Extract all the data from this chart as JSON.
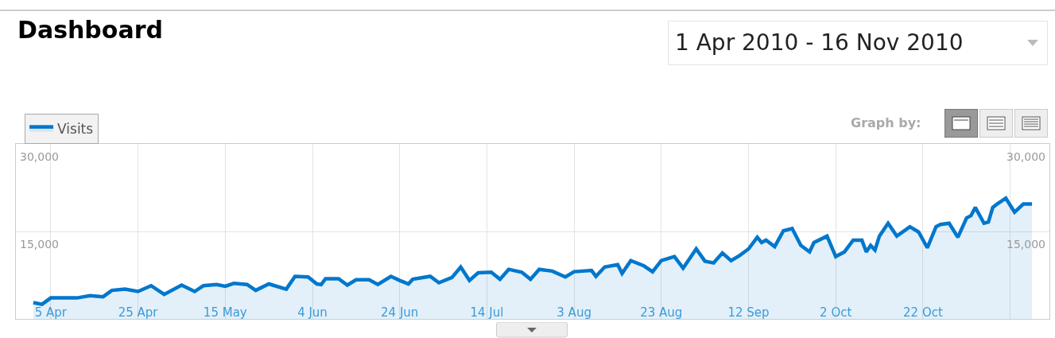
{
  "chart_data": {
    "type": "area",
    "title": "Dashboard",
    "subtitle": "1 Apr 2010 - 16 Nov 2010",
    "annotations": [
      "Graph by:"
    ],
    "x": [
      "2010-04-01",
      "2010-04-03",
      "2010-04-05",
      "2010-04-11",
      "2010-04-14",
      "2010-04-17",
      "2010-04-19",
      "2010-04-22",
      "2010-04-25",
      "2010-04-28",
      "2010-05-01",
      "2010-05-05",
      "2010-05-08",
      "2010-05-10",
      "2010-05-13",
      "2010-05-15",
      "2010-05-17",
      "2010-05-20",
      "2010-05-22",
      "2010-05-25",
      "2010-05-29",
      "2010-05-31",
      "2010-06-03",
      "2010-06-05",
      "2010-06-06",
      "2010-06-07",
      "2010-06-10",
      "2010-06-12",
      "2010-06-14",
      "2010-06-17",
      "2010-06-19",
      "2010-06-22",
      "2010-06-24",
      "2010-06-26",
      "2010-06-27",
      "2010-07-01",
      "2010-07-03",
      "2010-07-06",
      "2010-07-08",
      "2010-07-10",
      "2010-07-12",
      "2010-07-15",
      "2010-07-17",
      "2010-07-19",
      "2010-07-22",
      "2010-07-24",
      "2010-07-26",
      "2010-07-29",
      "2010-08-01",
      "2010-08-03",
      "2010-08-07",
      "2010-08-08",
      "2010-08-10",
      "2010-08-13",
      "2010-08-14",
      "2010-08-16",
      "2010-08-19",
      "2010-08-21",
      "2010-08-23",
      "2010-08-26",
      "2010-08-28",
      "2010-08-31",
      "2010-09-02",
      "2010-09-04",
      "2010-09-06",
      "2010-09-08",
      "2010-09-10",
      "2010-09-12",
      "2010-09-14",
      "2010-09-15",
      "2010-09-16",
      "2010-09-18",
      "2010-09-20",
      "2010-09-22",
      "2010-09-24",
      "2010-09-26",
      "2010-09-27",
      "2010-09-30",
      "2010-10-02",
      "2010-10-04",
      "2010-10-06",
      "2010-10-08",
      "2010-10-09",
      "2010-10-10",
      "2010-10-11",
      "2010-10-12",
      "2010-10-14",
      "2010-10-16",
      "2010-10-19",
      "2010-10-21",
      "2010-10-23",
      "2010-10-25",
      "2010-10-26",
      "2010-10-28",
      "2010-10-30",
      "2010-11-01",
      "2010-11-02",
      "2010-11-03",
      "2010-11-05",
      "2010-11-06",
      "2010-11-07",
      "2010-11-08",
      "2010-11-10",
      "2010-11-12",
      "2010-11-14",
      "2010-11-16"
    ],
    "series": [
      {
        "name": "Visits",
        "color": "#0077cc",
        "values": [
          2800,
          2500,
          3600,
          3600,
          4000,
          3800,
          4900,
          5100,
          4700,
          5700,
          4200,
          5800,
          4700,
          5700,
          5900,
          5600,
          6100,
          5900,
          4900,
          6000,
          5100,
          7300,
          7200,
          6000,
          5900,
          6900,
          6900,
          5800,
          6700,
          6700,
          5900,
          7300,
          6600,
          6000,
          6800,
          7300,
          6200,
          7100,
          8900,
          6600,
          7900,
          8000,
          6800,
          8500,
          8000,
          6800,
          8500,
          8200,
          7200,
          8100,
          8300,
          7300,
          8900,
          9300,
          7800,
          10000,
          9100,
          8100,
          10000,
          10700,
          8700,
          12000,
          9900,
          9600,
          11300,
          10000,
          10900,
          12000,
          14000,
          13100,
          13500,
          12400,
          15100,
          15500,
          12600,
          11500,
          13100,
          14200,
          10700,
          11500,
          13500,
          13500,
          11500,
          12600,
          11800,
          14200,
          16400,
          14200,
          15800,
          14900,
          12200,
          15800,
          16200,
          16400,
          14000,
          17300,
          17700,
          19100,
          16400,
          16600,
          19100,
          19700,
          20700,
          18300,
          19700,
          19700
        ]
      }
    ],
    "xlim": [
      "2010-03-28",
      "2010-11-20"
    ],
    "xticks": [
      {
        "value": "2010-04-05",
        "label": "5 Apr"
      },
      {
        "value": "2010-04-25",
        "label": "25 Apr"
      },
      {
        "value": "2010-05-15",
        "label": "15 May"
      },
      {
        "value": "2010-06-04",
        "label": "4 Jun"
      },
      {
        "value": "2010-06-24",
        "label": "24 Jun"
      },
      {
        "value": "2010-07-14",
        "label": "14 Jul"
      },
      {
        "value": "2010-08-03",
        "label": "3 Aug"
      },
      {
        "value": "2010-08-23",
        "label": "23 Aug"
      },
      {
        "value": "2010-09-12",
        "label": "12 Sep"
      },
      {
        "value": "2010-10-02",
        "label": "2 Oct"
      },
      {
        "value": "2010-10-22",
        "label": "22 Oct"
      },
      {
        "value": "2010-11-11",
        "label": null
      }
    ],
    "ylim": [
      0,
      30000
    ],
    "yticks": [
      {
        "value": 15000,
        "label": "15,000"
      },
      {
        "value": 30000,
        "label": "30,000"
      }
    ],
    "y2lim": [
      0,
      30000
    ],
    "y2ticks": [
      {
        "value": 15000,
        "label": "15,000"
      },
      {
        "value": 30000,
        "label": "30,000"
      }
    ],
    "grid": true,
    "legend": "top left",
    "marker": "none",
    "line_style": "solid"
  }
}
